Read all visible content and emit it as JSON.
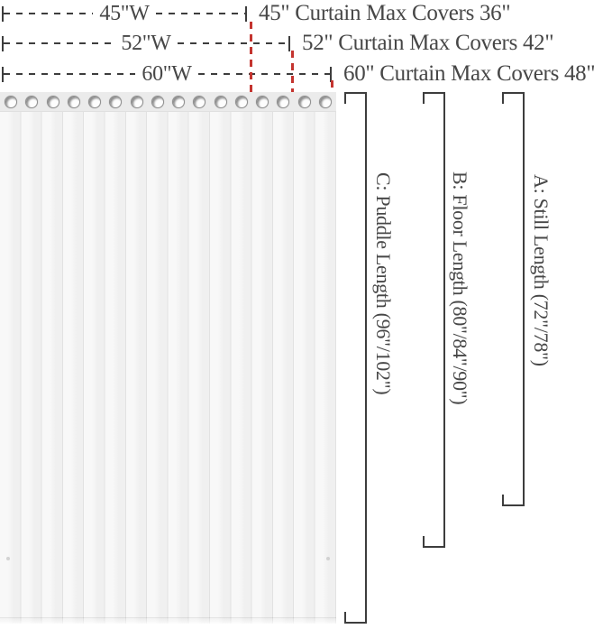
{
  "width_rows": [
    {
      "inline_label": "45\"W",
      "caption": "45\" Curtain Max Covers 36\""
    },
    {
      "inline_label": "52\"W",
      "caption": "52\" Curtain Max Covers 42\""
    },
    {
      "inline_label": "60\"W",
      "caption": "60\" Curtain Max Covers 48\""
    }
  ],
  "length_labels": [
    {
      "id": "A",
      "text": "A: Still Length (72\"/78\")"
    },
    {
      "id": "B",
      "text": "B: Floor Length (80\"/84\"/90\")"
    },
    {
      "id": "C",
      "text": "C: Puddle Length (96\"/102\")"
    }
  ],
  "curtain": {
    "grommet_count": 16,
    "panel_count": 16
  },
  "colors": {
    "ink": "#3d3d3d",
    "text": "#474747",
    "red": "#c4342f",
    "fabric": "#f3f3f3",
    "band": "#ebebeb"
  }
}
